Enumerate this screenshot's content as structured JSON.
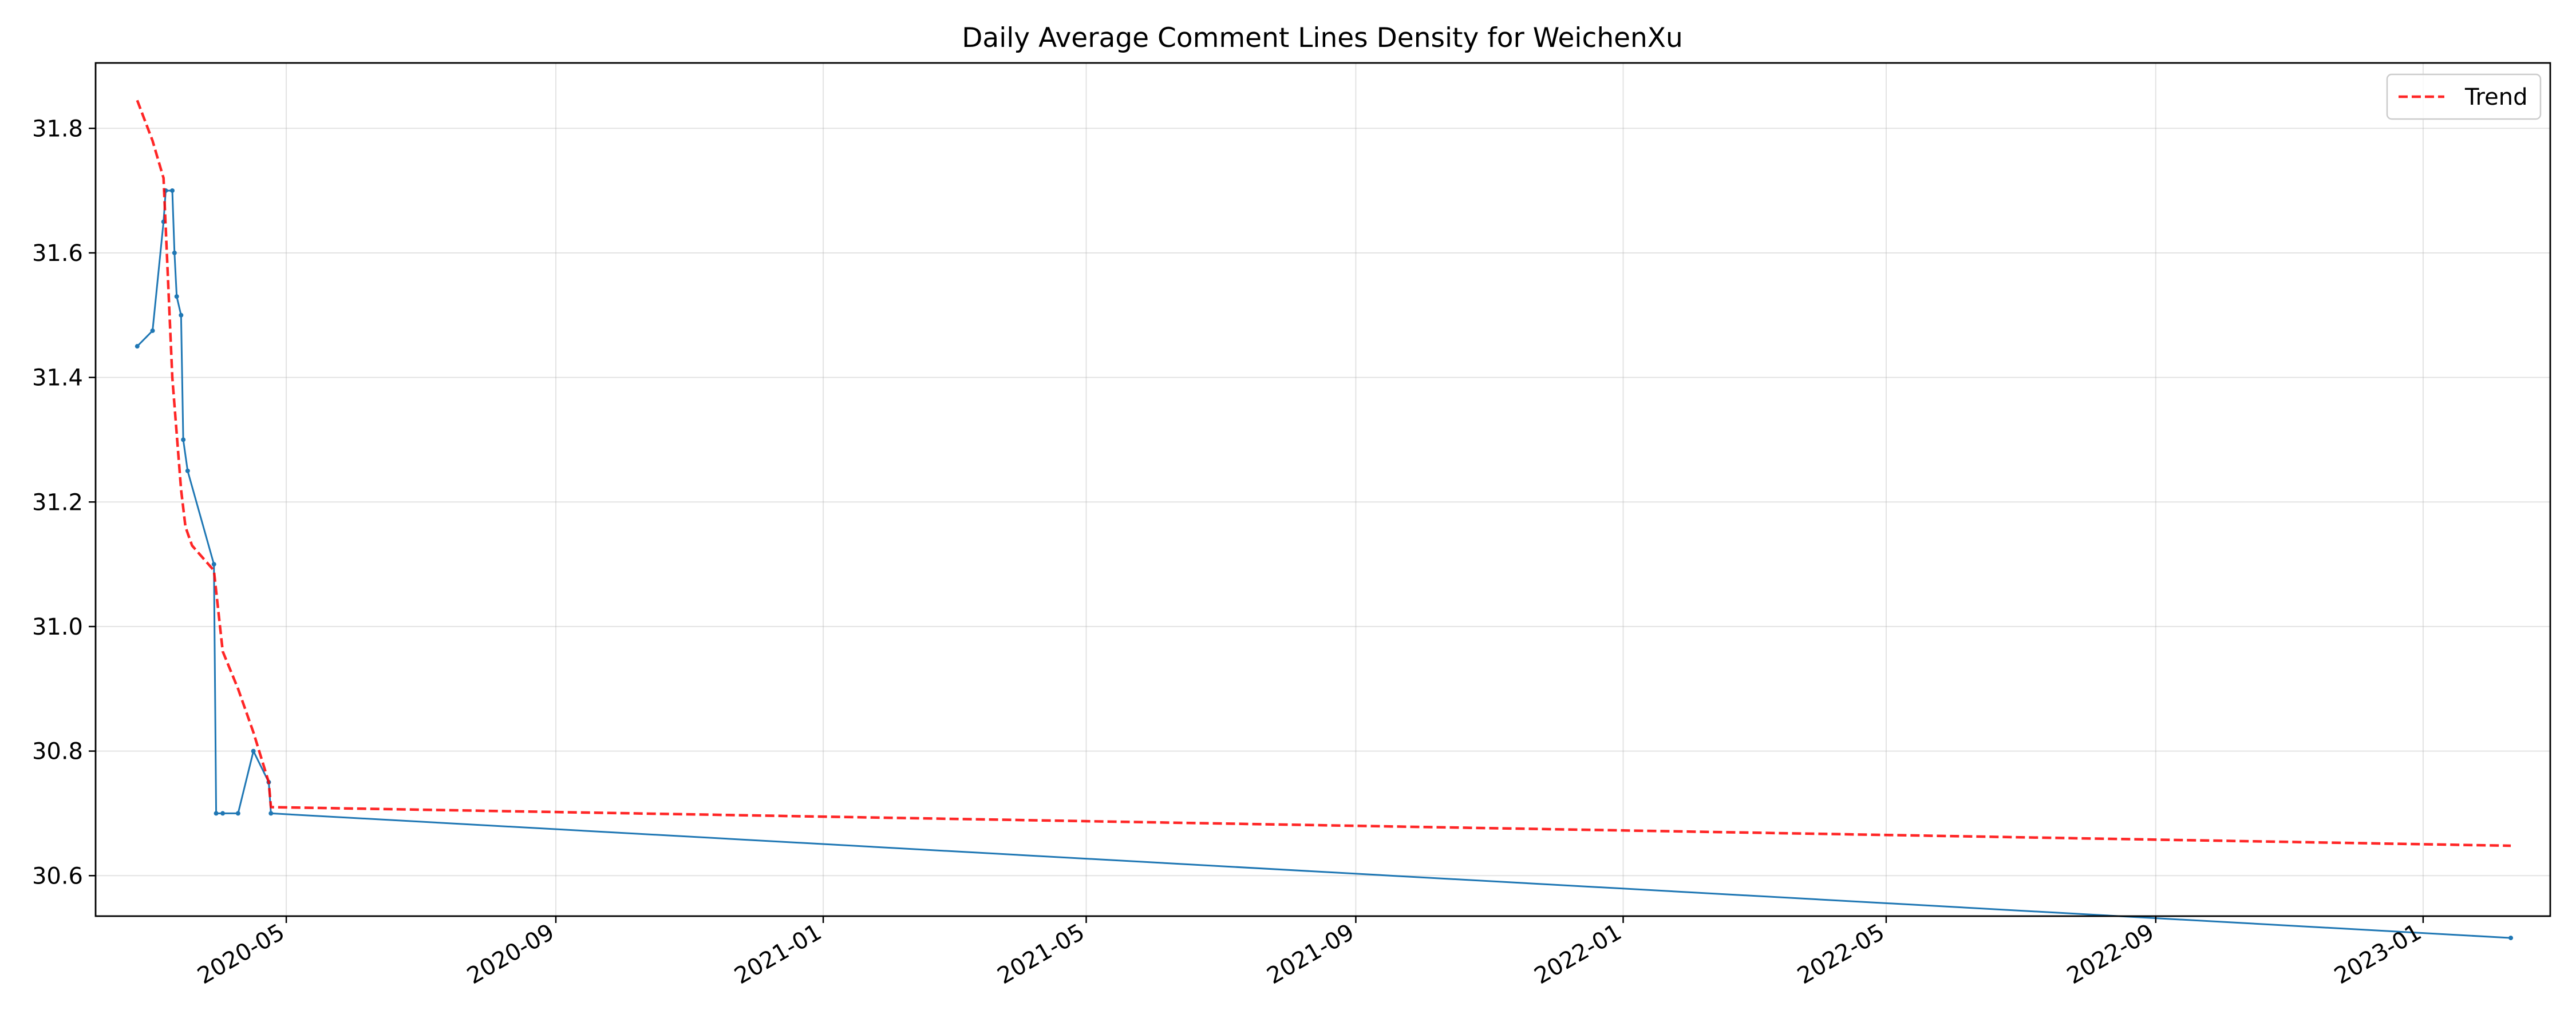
{
  "chart_data": {
    "type": "line",
    "title": "Daily Average Comment Lines Density for WeichenXu",
    "xlabel": "",
    "ylabel": "",
    "xlim": [
      "2020-02-04",
      "2023-02-28"
    ],
    "ylim": [
      30.535,
      31.905
    ],
    "x_ticks": [
      "2020-05",
      "2020-09",
      "2021-01",
      "2021-05",
      "2021-09",
      "2022-01",
      "2022-05",
      "2022-09",
      "2023-01"
    ],
    "y_ticks": [
      "30.6",
      "30.8",
      "31.0",
      "31.2",
      "31.4",
      "31.6",
      "31.8"
    ],
    "grid": true,
    "legend": {
      "position": "top-right",
      "entries": [
        "Trend"
      ]
    },
    "series": [
      {
        "color": "#1f77b4",
        "style": "solid",
        "marker": "dot",
        "x": [
          "2020-02-23",
          "2020-03-01",
          "2020-03-06",
          "2020-03-07",
          "2020-03-10",
          "2020-03-11",
          "2020-03-12",
          "2020-03-14",
          "2020-03-15",
          "2020-03-17",
          "2020-03-29",
          "2020-03-30",
          "2020-04-02",
          "2020-04-09",
          "2020-04-16",
          "2020-04-23",
          "2020-04-24",
          "2023-02-10"
        ],
        "y": [
          31.45,
          31.475,
          31.65,
          31.7,
          31.7,
          31.6,
          31.53,
          31.5,
          31.3,
          31.25,
          31.1,
          30.7,
          30.7,
          30.7,
          30.8,
          30.75,
          30.7,
          30.5
        ]
      },
      {
        "name": "Trend",
        "color": "#ff0000",
        "style": "dashed",
        "x": [
          "2020-02-23",
          "2020-03-01",
          "2020-03-06",
          "2020-03-10",
          "2020-03-14",
          "2020-03-16",
          "2020-03-19",
          "2020-03-29",
          "2020-04-02",
          "2020-04-09",
          "2020-04-16",
          "2020-04-23",
          "2020-04-24",
          "2023-02-10"
        ],
        "y": [
          31.845,
          31.78,
          31.72,
          31.4,
          31.22,
          31.16,
          31.13,
          31.09,
          30.96,
          30.9,
          30.83,
          30.75,
          30.71,
          30.648
        ]
      }
    ]
  }
}
